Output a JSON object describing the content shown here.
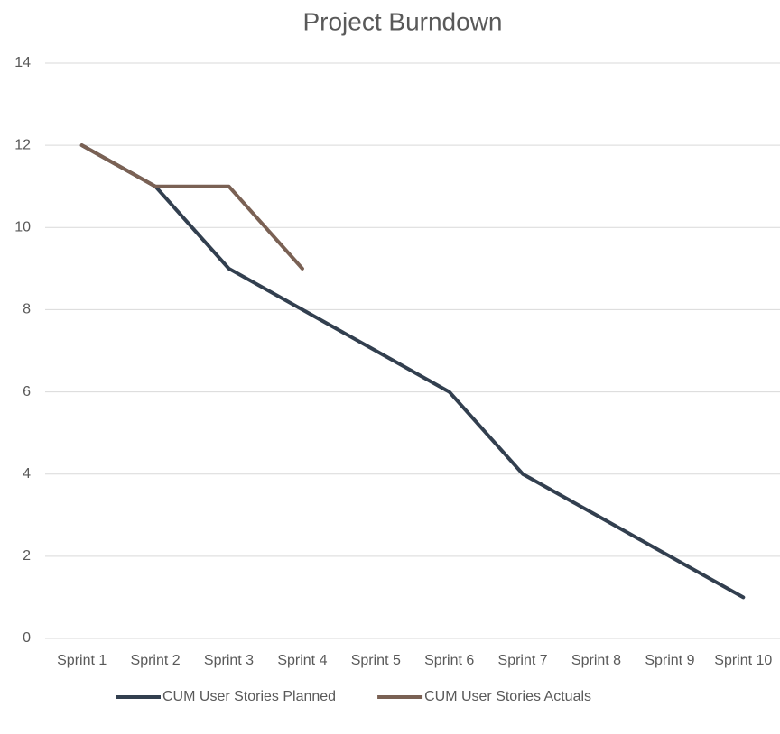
{
  "chart_data": {
    "type": "line",
    "title": "Project Burndown",
    "categories": [
      "Sprint 1",
      "Sprint 2",
      "Sprint 3",
      "Sprint 4",
      "Sprint 5",
      "Sprint 6",
      "Sprint 7",
      "Sprint 8",
      "Sprint 9",
      "Sprint 10"
    ],
    "series": [
      {
        "name": "CUM User Stories Planned",
        "color": "#323f4f",
        "values": [
          12,
          11,
          9,
          8,
          7,
          6,
          4,
          3,
          2,
          1
        ]
      },
      {
        "name": "CUM User Stories Actuals",
        "color": "#7a6154",
        "values": [
          12,
          11,
          11,
          9,
          null,
          null,
          null,
          null,
          null,
          null
        ]
      }
    ],
    "ylim": [
      0,
      14
    ],
    "yticks": [
      0,
      2,
      4,
      6,
      8,
      10,
      12,
      14
    ],
    "grid": true,
    "legend": "bottom"
  }
}
